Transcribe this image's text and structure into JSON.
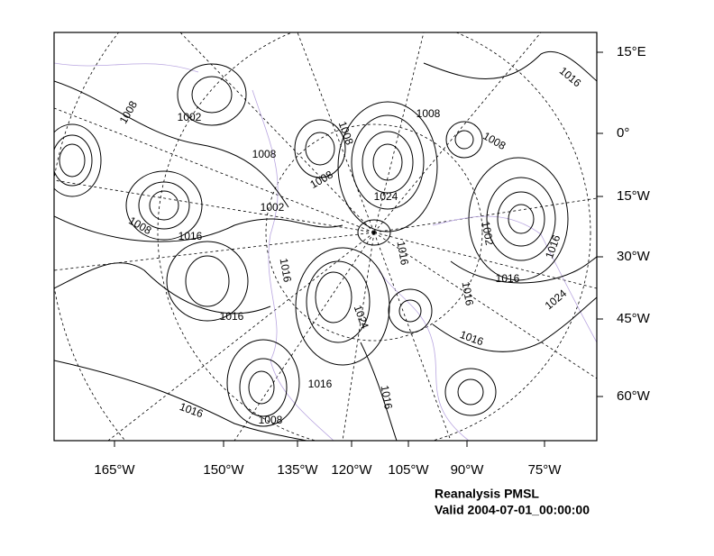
{
  "map": {
    "x_labels": [
      "165°W",
      "150°W",
      "135°W",
      "120°W",
      "105°W",
      "90°W",
      "75°W"
    ],
    "y_labels": [
      "15°E",
      "0°",
      "15°W",
      "30°W",
      "45°W",
      "60°W"
    ],
    "contour_labels": [
      "1008",
      "1002",
      "1008",
      "1008",
      "1008",
      "1008",
      "1008",
      "1024",
      "1002",
      "1008",
      "1016",
      "1016",
      "1016",
      "1002",
      "1016",
      "1016",
      "1016",
      "1024",
      "1024",
      "1016",
      "1016",
      "1016",
      "1016",
      "1016",
      "1008",
      "1016"
    ],
    "caption": [
      "Reanalysis PMSL",
      "Valid 2004-07-01_00:00:00"
    ]
  }
}
